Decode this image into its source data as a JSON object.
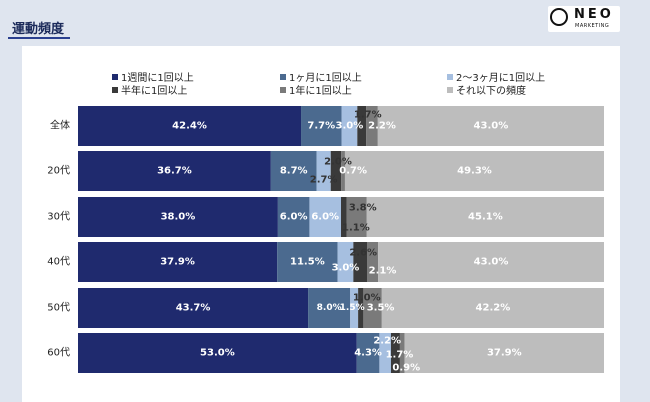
{
  "page": {
    "title": "運動頻度"
  },
  "logo": {
    "main": "NEO",
    "sub": "MARKETING"
  },
  "colors": {
    "c1": "#1f2a6e",
    "c2": "#4b6a8f",
    "c3": "#a6bfe0",
    "c4": "#3a3a3a",
    "c5": "#7a7a7a",
    "c6": "#bdbdbd"
  },
  "chart_data": {
    "type": "bar",
    "orientation": "horizontal",
    "stacked": true,
    "percent": true,
    "categories": [
      "全体",
      "20代",
      "30代",
      "40代",
      "50代",
      "60代"
    ],
    "series": [
      {
        "name": "1週間に1回以上",
        "color": "#1f2a6e",
        "values": [
          42.4,
          36.7,
          38.0,
          37.9,
          43.7,
          53.0
        ],
        "labels": [
          "42.4%",
          "36.7%",
          "38.0%",
          "37.9%",
          "43.7%",
          "53.0%"
        ]
      },
      {
        "name": "1ヶ月に1回以上",
        "color": "#4b6a8f",
        "values": [
          7.7,
          8.7,
          6.0,
          11.5,
          8.0,
          4.3
        ],
        "labels": [
          "7.7%",
          "8.7%",
          "6.0%",
          "11.5%",
          "8.0%",
          "4.3%"
        ]
      },
      {
        "name": "2～3ヶ月に1回以上",
        "color": "#a6bfe0",
        "values": [
          3.0,
          2.7,
          6.0,
          3.0,
          1.5,
          2.2
        ],
        "labels": [
          "3.0%",
          "2.7%",
          "6.0%",
          "3.0%",
          "1.5%",
          "2.2%"
        ]
      },
      {
        "name": "半年に1回以上",
        "color": "#3a3a3a",
        "values": [
          1.7,
          2.0,
          1.1,
          2.6,
          1.0,
          1.7
        ],
        "labels": [
          "1.7%",
          "2.0%",
          "1.1%",
          "2.6%",
          "1.0%",
          "1.7%"
        ]
      },
      {
        "name": "1年に1回以上",
        "color": "#7a7a7a",
        "values": [
          2.2,
          0.7,
          3.8,
          2.1,
          3.5,
          0.9
        ],
        "labels": [
          "2.2%",
          "0.7%",
          "3.8%",
          "2.1%",
          "3.5%",
          "0.9%"
        ]
      },
      {
        "name": "それ以下の頻度",
        "color": "#bdbdbd",
        "values": [
          43.0,
          49.3,
          45.1,
          43.0,
          42.2,
          37.9
        ],
        "labels": [
          "43.0%",
          "49.3%",
          "45.1%",
          "43.0%",
          "42.2%",
          "37.9%"
        ]
      }
    ],
    "xlim": [
      0,
      100
    ],
    "legend": "top",
    "grid": false
  }
}
